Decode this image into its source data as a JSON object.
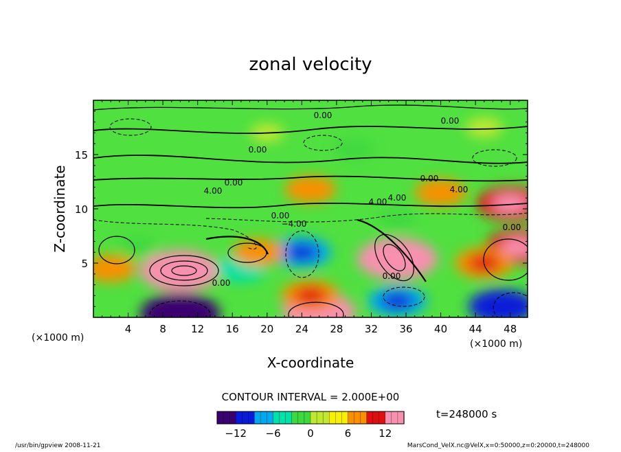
{
  "chart_data": {
    "type": "heatmap",
    "title": "zonal velocity",
    "xlabel": "X-coordinate",
    "ylabel": "Z-coordinate",
    "x_unit": "(×1000 m)",
    "y_unit": "(×1000 m)",
    "xlim": [
      0,
      50
    ],
    "ylim": [
      0,
      20
    ],
    "x_ticks": [
      "4",
      "8",
      "12",
      "16",
      "20",
      "24",
      "28",
      "32",
      "36",
      "40",
      "44",
      "48"
    ],
    "y_ticks": [
      "5",
      "10",
      "15"
    ],
    "contour_interval_label": "CONTOUR INTERVAL = 2.000E+00",
    "time_label": "t=248000 s",
    "colorbar": {
      "range": [
        -15,
        15
      ],
      "ticks": [
        "−12",
        "−6",
        "0",
        "6",
        "12"
      ],
      "colors": [
        "#3a0070",
        "#0a1ad8",
        "#00a8f0",
        "#00e0a8",
        "#40d840",
        "#c0e830",
        "#f8f000",
        "#f89000",
        "#e01010",
        "#f890b0"
      ]
    },
    "contour_labels": [
      "0.00",
      "0.00",
      "0.00",
      "0.00",
      "4.00",
      "4.00",
      "4.00",
      "0.00",
      "4.00",
      "0.00",
      "−4.00",
      "0.00",
      "0.00",
      "0.00"
    ],
    "features": [
      {
        "x": 10,
        "z": 4.3,
        "value": 14
      },
      {
        "x": 35,
        "z": 5.4,
        "value": 14
      },
      {
        "x": 49,
        "z": 6.5,
        "value": 10
      },
      {
        "x": 48,
        "z": 10.5,
        "value": 10
      },
      {
        "x": 25,
        "z": 11.8,
        "value": 6
      },
      {
        "x": 40,
        "z": 11.5,
        "value": 6
      },
      {
        "x": 24,
        "z": 6.0,
        "value": -8
      },
      {
        "x": 10,
        "z": 0.3,
        "value": -14
      },
      {
        "x": 47,
        "z": 1.0,
        "value": -10
      },
      {
        "x": 35,
        "z": 1.5,
        "value": -8
      },
      {
        "x": 17,
        "z": 4.5,
        "value": -6
      },
      {
        "x": 26,
        "z": 0.5,
        "value": 12
      },
      {
        "x": 19,
        "z": 6.0,
        "value": 6
      },
      {
        "x": 2,
        "z": 4.5,
        "value": 6
      },
      {
        "x": 25,
        "z": 2.0,
        "value": 8
      },
      {
        "x": 45,
        "z": 5.0,
        "value": 8
      },
      {
        "x": 5,
        "z": 6.5,
        "value": -3
      },
      {
        "x": 30,
        "z": 15.5,
        "value": -3
      },
      {
        "x": 20,
        "z": 17.0,
        "value": 1
      },
      {
        "x": 45,
        "z": 17.5,
        "value": 2
      },
      {
        "x": 35,
        "z": 9.0,
        "value": -2
      }
    ]
  },
  "footer": {
    "left": "/usr/bin/gpview   2008-11-21",
    "right": "MarsCond_VelX.nc@VelX,x=0:50000,z=0:20000,t=248000"
  }
}
